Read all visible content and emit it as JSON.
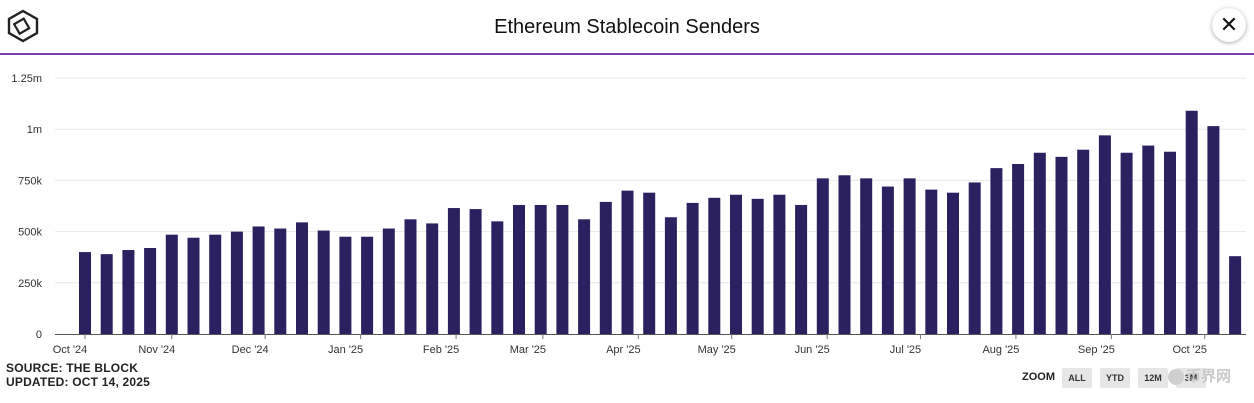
{
  "header": {
    "title": "Ethereum Stablecoin Senders",
    "close_label": "✕"
  },
  "footer": {
    "source": "SOURCE: THE BLOCK",
    "updated": "UPDATED: OCT 14, 2025"
  },
  "zoom": {
    "label": "ZOOM",
    "options": [
      "ALL",
      "YTD",
      "12M",
      "3M"
    ]
  },
  "watermark": {
    "text": "币界网"
  },
  "colors": {
    "bar": "#2b2160",
    "grid": "#e8e8e8",
    "divider": "#7b3fb5",
    "axis": "#333333"
  },
  "chart_data": {
    "type": "bar",
    "title": "Ethereum Stablecoin Senders",
    "xlabel": "",
    "ylabel": "",
    "ylim": [
      0,
      1250000
    ],
    "grid": true,
    "y_ticks": [
      {
        "value": 0,
        "label": "0"
      },
      {
        "value": 250000,
        "label": "250k"
      },
      {
        "value": 500000,
        "label": "500k"
      },
      {
        "value": 750000,
        "label": "750k"
      },
      {
        "value": 1000000,
        "label": "1m"
      },
      {
        "value": 1250000,
        "label": "1.25m"
      }
    ],
    "x_ticks": [
      {
        "index": 0,
        "label": "Oct '24"
      },
      {
        "index": 4,
        "label": "Nov '24"
      },
      {
        "index": 8.3,
        "label": "Dec '24"
      },
      {
        "index": 12.7,
        "label": "Jan '25"
      },
      {
        "index": 17.1,
        "label": "Feb '25"
      },
      {
        "index": 21.1,
        "label": "Mar '25"
      },
      {
        "index": 25.5,
        "label": "Apr '25"
      },
      {
        "index": 29.8,
        "label": "May '25"
      },
      {
        "index": 34.2,
        "label": "Jun '25"
      },
      {
        "index": 38.5,
        "label": "Jul '25"
      },
      {
        "index": 42.9,
        "label": "Aug '25"
      },
      {
        "index": 47.3,
        "label": "Sep '25"
      },
      {
        "index": 51.6,
        "label": "Oct '25"
      }
    ],
    "series": [
      {
        "name": "Ethereum Stablecoin Senders",
        "values": [
          400000,
          390000,
          410000,
          420000,
          485000,
          470000,
          485000,
          500000,
          525000,
          515000,
          545000,
          505000,
          475000,
          475000,
          515000,
          560000,
          540000,
          615000,
          610000,
          550000,
          630000,
          630000,
          630000,
          560000,
          645000,
          700000,
          690000,
          570000,
          640000,
          665000,
          680000,
          660000,
          680000,
          630000,
          760000,
          775000,
          760000,
          720000,
          760000,
          705000,
          690000,
          740000,
          810000,
          830000,
          885000,
          865000,
          900000,
          970000,
          885000,
          920000,
          890000,
          1090000,
          1015000,
          380000
        ]
      }
    ]
  }
}
